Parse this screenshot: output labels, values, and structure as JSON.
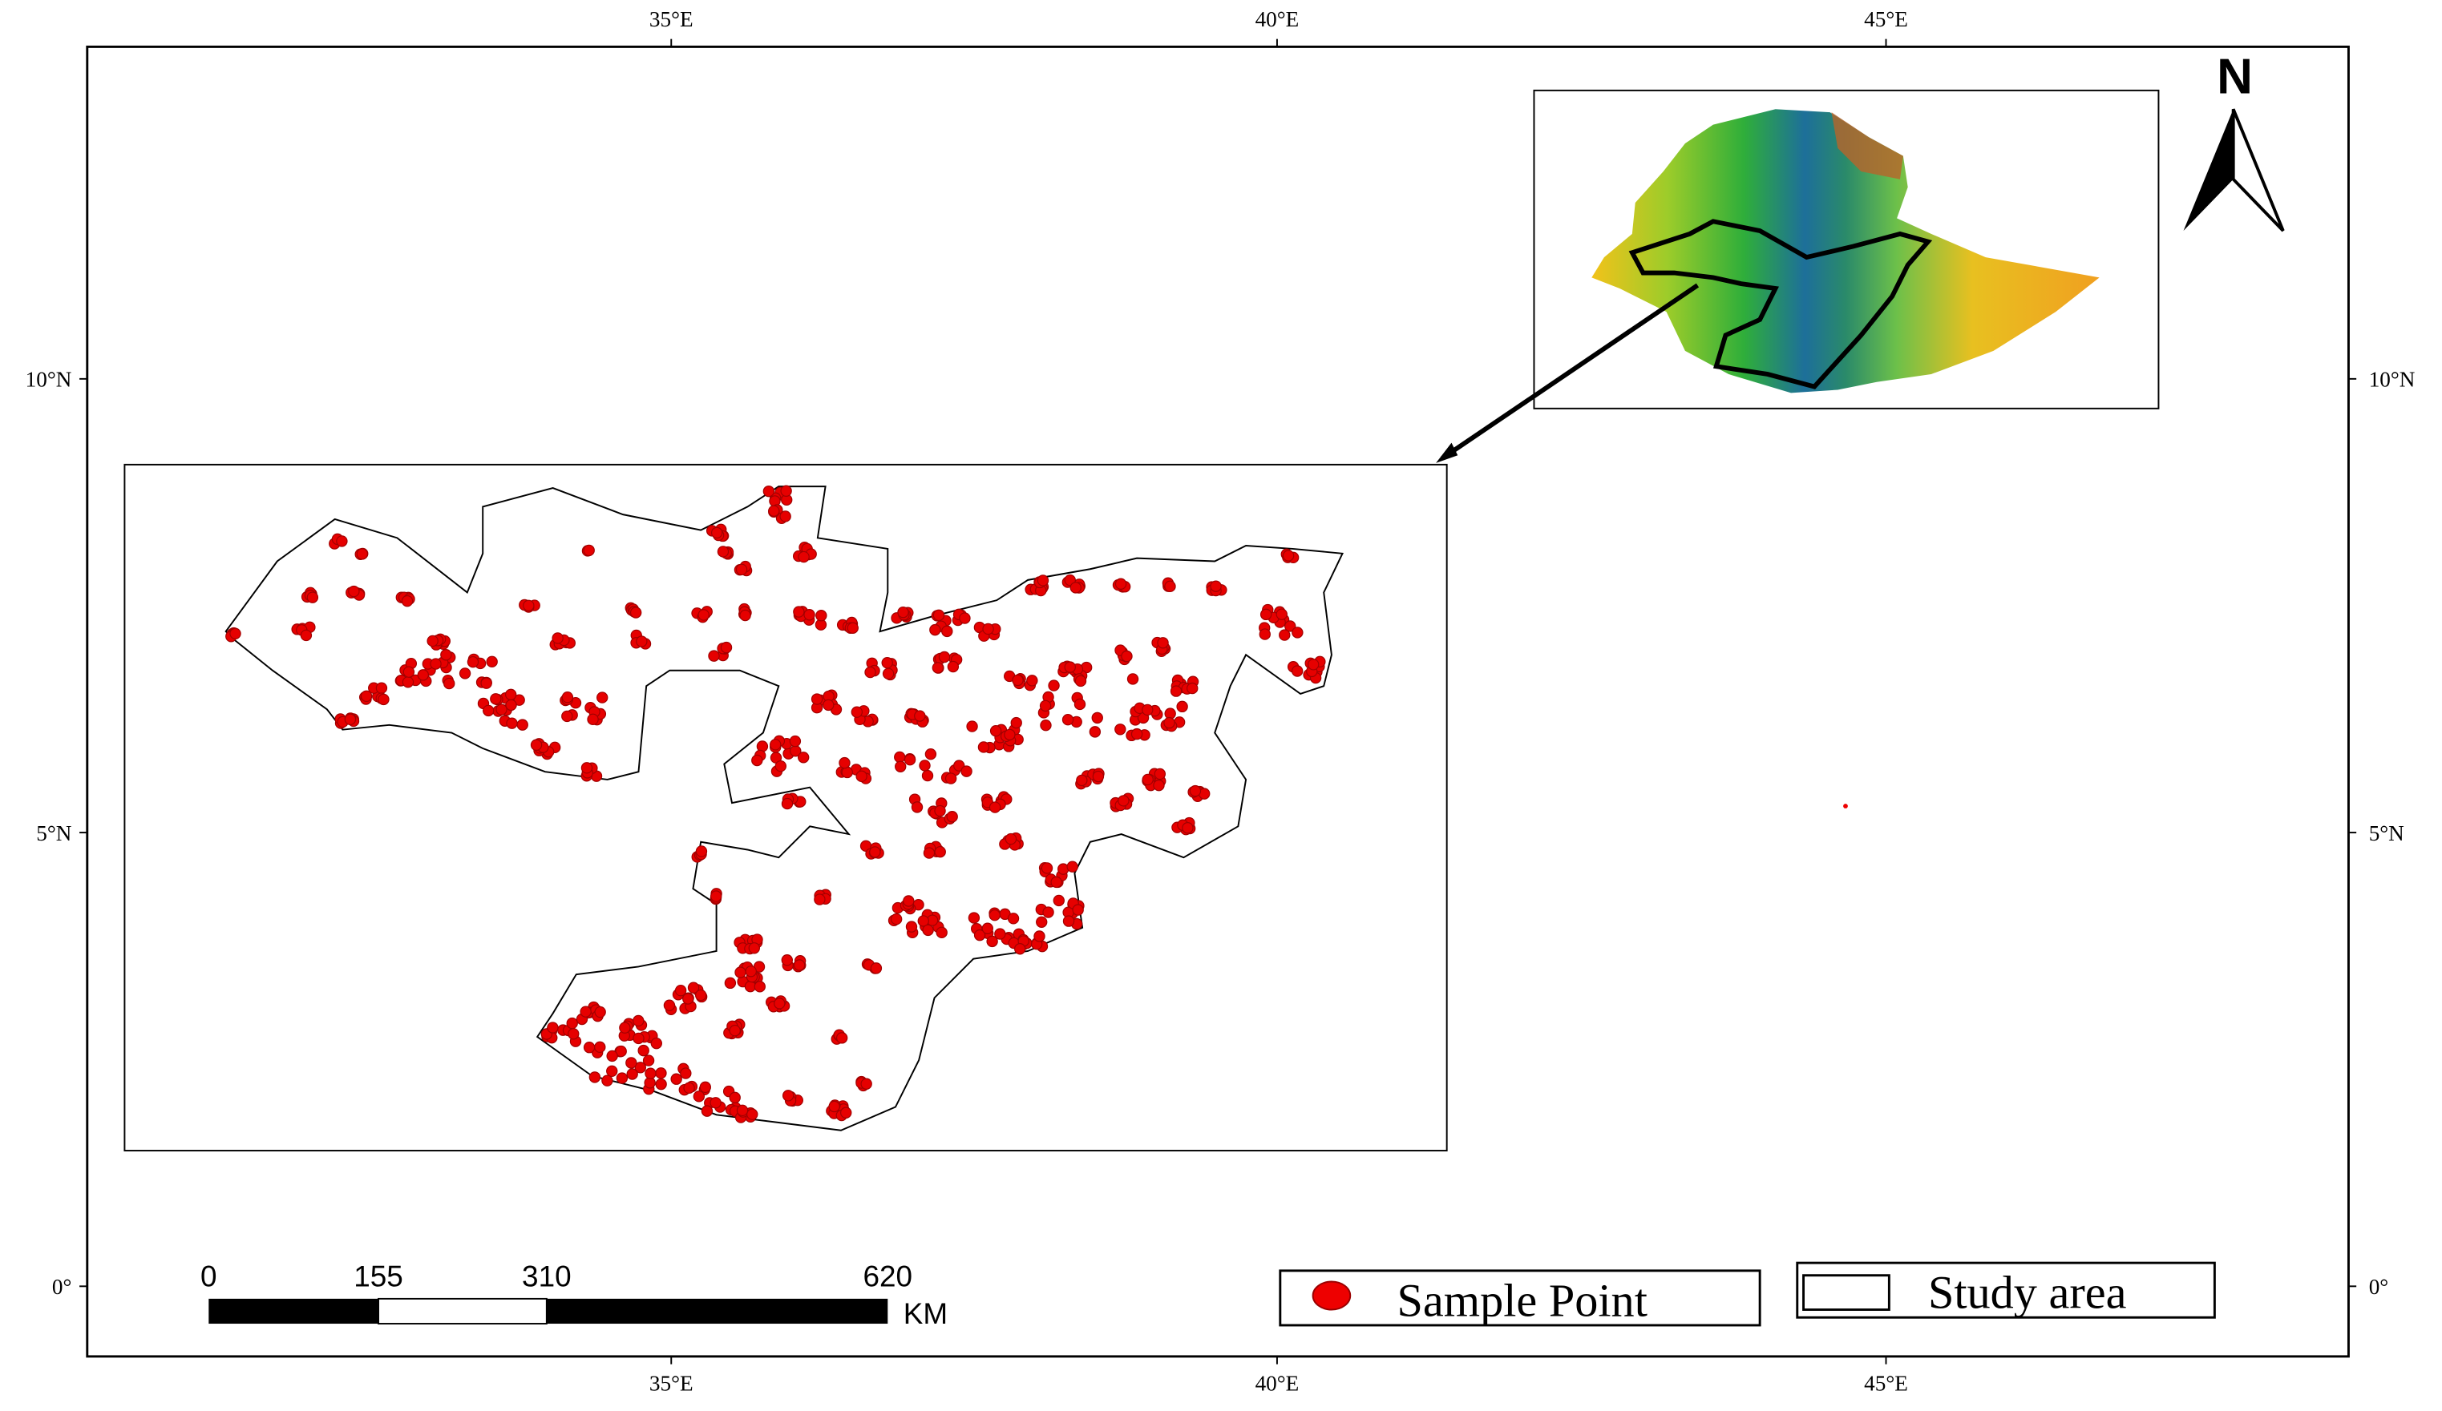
{
  "graticule": {
    "longitudes": [
      "35°E",
      "40°E",
      "45°E"
    ],
    "latitudes": [
      "10°N",
      "5°N",
      "0°"
    ]
  },
  "north_arrow": "N",
  "scale_bar": {
    "ticks": [
      "0",
      "155",
      "310",
      "620"
    ],
    "unit": "KM"
  },
  "legend": [
    "Sample Point",
    "Study area"
  ]
}
